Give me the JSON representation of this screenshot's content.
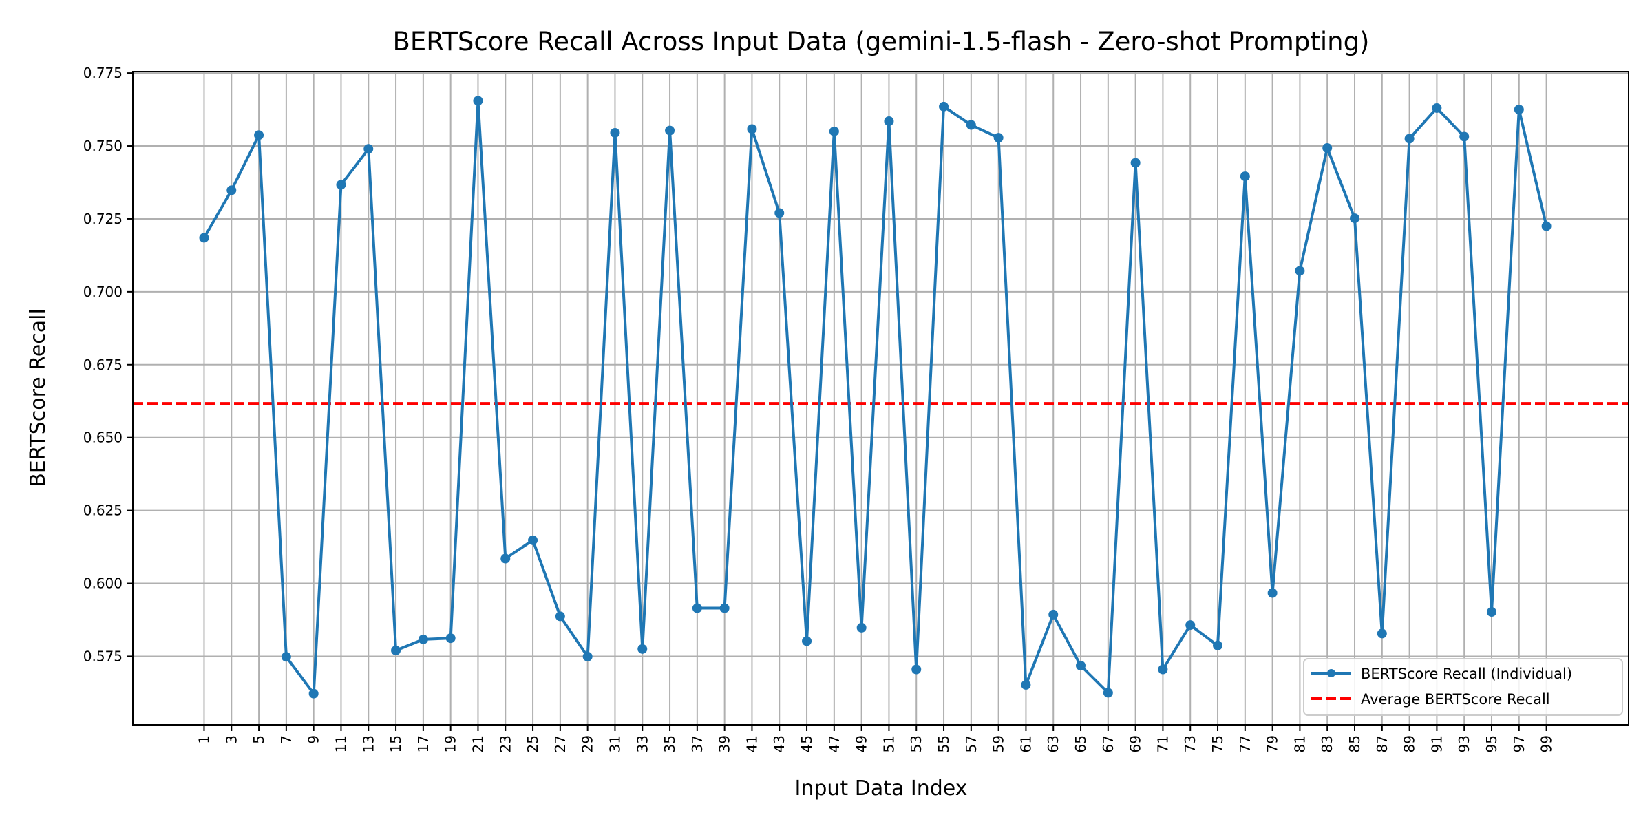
{
  "chart_data": {
    "type": "line",
    "title": "BERTScore Recall Across Input Data (gemini-1.5-flash - Zero-shot Prompting)",
    "xlabel": "Input Data Index",
    "ylabel": "BERTScore Recall",
    "x": [
      1,
      3,
      5,
      7,
      9,
      11,
      13,
      15,
      17,
      19,
      21,
      23,
      25,
      27,
      29,
      31,
      33,
      35,
      37,
      39,
      41,
      43,
      45,
      47,
      49,
      51,
      53,
      55,
      57,
      59,
      61,
      63,
      65,
      67,
      69,
      71,
      73,
      75,
      77,
      79,
      81,
      83,
      85,
      87,
      89,
      91,
      93,
      95,
      97,
      99
    ],
    "xticks": [
      "1",
      "3",
      "5",
      "7",
      "9",
      "11",
      "13",
      "15",
      "17",
      "19",
      "21",
      "23",
      "25",
      "27",
      "29",
      "31",
      "33",
      "35",
      "37",
      "39",
      "41",
      "43",
      "45",
      "47",
      "49",
      "51",
      "53",
      "55",
      "57",
      "59",
      "61",
      "63",
      "65",
      "67",
      "69",
      "71",
      "73",
      "75",
      "77",
      "79",
      "81",
      "83",
      "85",
      "87",
      "89",
      "91",
      "93",
      "95",
      "97",
      "99"
    ],
    "yticks": [
      "0.575",
      "0.600",
      "0.625",
      "0.650",
      "0.675",
      "0.700",
      "0.725",
      "0.750",
      "0.775"
    ],
    "xlim": [
      -4.2,
      105
    ],
    "ylim": [
      0.5515,
      0.7755
    ],
    "grid": true,
    "legend_position": "lower-right",
    "series": [
      {
        "name": "BERTScore Recall (Individual)",
        "color": "#1f77b4",
        "style": "line-with-markers",
        "values": [
          0.7185,
          0.7348,
          0.7537,
          0.5748,
          0.5622,
          0.7367,
          0.749,
          0.577,
          0.5808,
          0.5812,
          0.7655,
          0.6085,
          0.6148,
          0.5887,
          0.5749,
          0.7545,
          0.5775,
          0.7553,
          0.5915,
          0.5915,
          0.7558,
          0.727,
          0.5802,
          0.755,
          0.5848,
          0.7585,
          0.5705,
          0.7635,
          0.7572,
          0.7528,
          0.5652,
          0.5893,
          0.5718,
          0.5625,
          0.7442,
          0.5705,
          0.5857,
          0.5787,
          0.7396,
          0.5967,
          0.7072,
          0.7493,
          0.7252,
          0.5828,
          0.7525,
          0.763,
          0.7532,
          0.5902,
          0.7625,
          0.7225
        ]
      },
      {
        "name": "Average BERTScore Recall",
        "color": "#ff0000",
        "style": "dashed",
        "value": 0.6617
      }
    ]
  }
}
